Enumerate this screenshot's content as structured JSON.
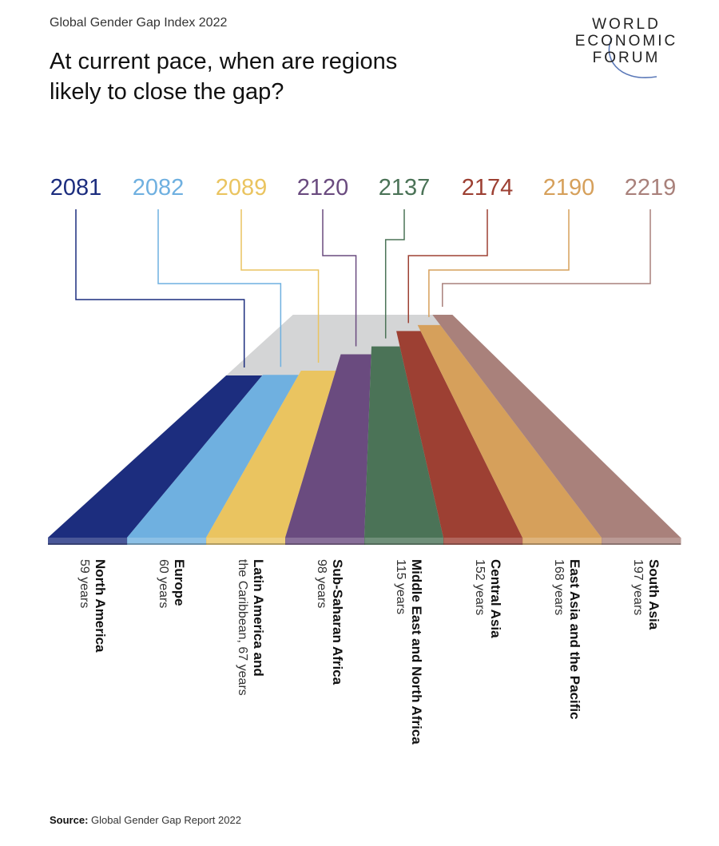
{
  "header": {
    "subtitle": "Global Gender Gap Index 2022",
    "title_line1": "At current pace, when are regions",
    "title_line2": "likely to close the gap?"
  },
  "logo": {
    "line1": "WORLD",
    "line2": "ECONOMIC",
    "line3": "FORUM"
  },
  "chart_data": {
    "type": "bar",
    "title": "At current pace, when are regions likely to close the gap?",
    "categories": [
      "North America",
      "Europe",
      "Latin America and the Caribbean",
      "Sub-Saharan Africa",
      "Middle East and North Africa",
      "Central Asia",
      "East Asia and the Pacific",
      "South Asia"
    ],
    "series": [
      {
        "name": "Year gap closed",
        "values": [
          2081,
          2082,
          2089,
          2120,
          2137,
          2174,
          2190,
          2219
        ]
      },
      {
        "name": "Years to close",
        "values": [
          59,
          60,
          67,
          98,
          115,
          152,
          168,
          197
        ]
      }
    ],
    "year_labels": [
      "2081",
      "2082",
      "2089",
      "2120",
      "2137",
      "2174",
      "2190",
      "2219"
    ],
    "region_names": [
      "North America",
      "Europe",
      "Latin America and",
      "Sub-Saharan Africa",
      "Middle East and North Africa",
      "Central Asia",
      "East Asia and the Pacific",
      "South Asia"
    ],
    "region_years": [
      "59 years",
      "60 years",
      "the Caribbean, 67 years",
      "98 years",
      "115 years",
      "152 years",
      "168 years",
      "197 years"
    ],
    "colors": [
      "#1c2d7e",
      "#6fb0e0",
      "#eac460",
      "#6a4b7f",
      "#4b7357",
      "#9d4033",
      "#d6a05b",
      "#a9817b"
    ],
    "road_color": "#d4d5d6"
  },
  "source": {
    "label": "Source:",
    "text": "Global Gender Gap Report 2022"
  }
}
